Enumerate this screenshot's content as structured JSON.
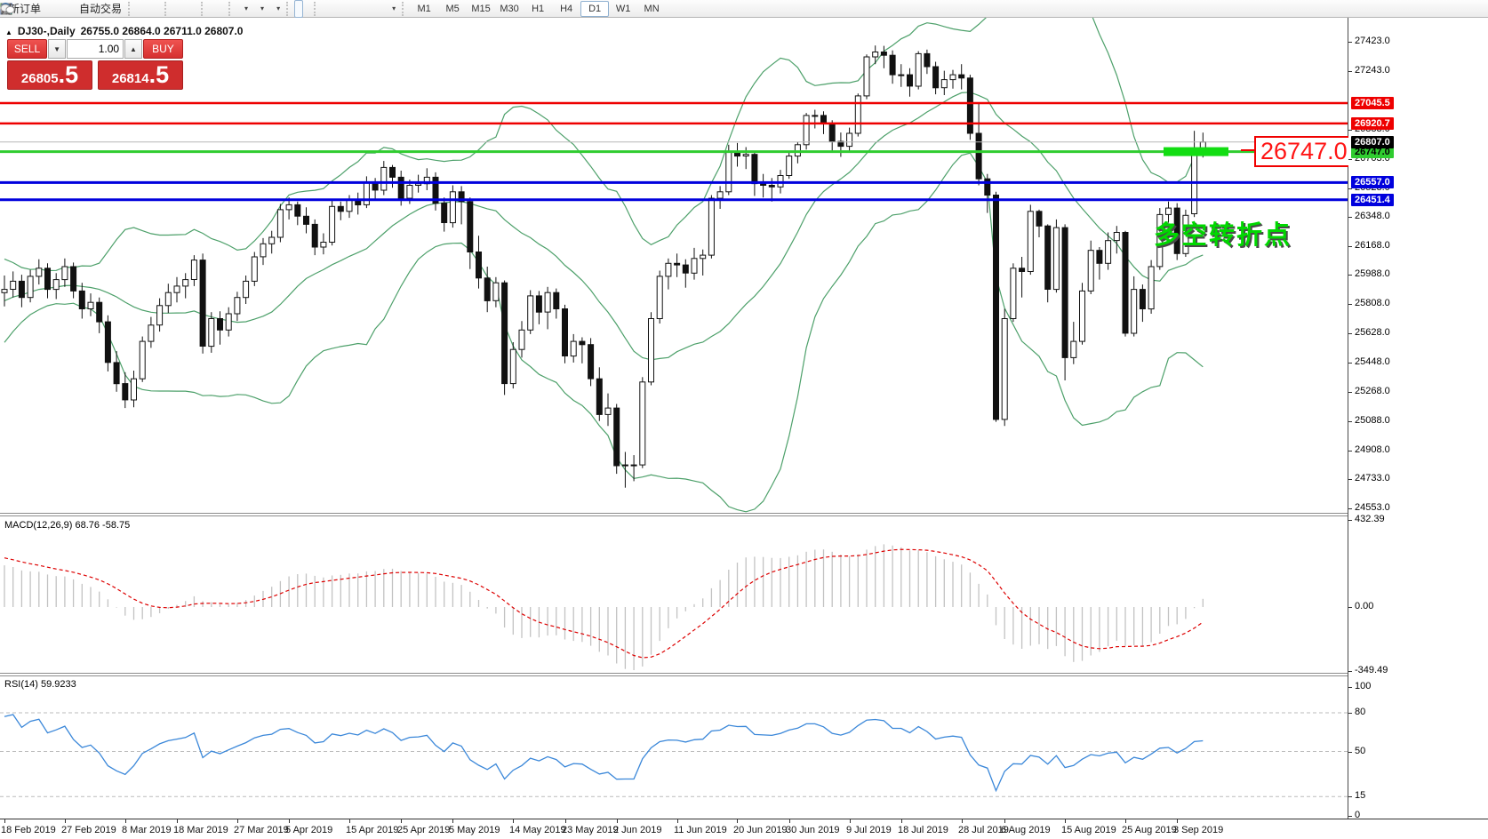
{
  "toolbar": {
    "buttons": [
      {
        "name": "new-order",
        "icon": "doc-plus",
        "label": "新订单"
      },
      {
        "name": "indicators",
        "icon": "diamond"
      },
      {
        "name": "market-watch",
        "icon": "person"
      },
      {
        "name": "signals",
        "icon": "radar"
      },
      {
        "name": "auto-trading",
        "icon": "autotrade",
        "label": "自动交易"
      },
      {
        "sep": true
      },
      {
        "name": "bar-chart",
        "icon": "bars"
      },
      {
        "name": "candle-chart",
        "icon": "candles"
      },
      {
        "name": "line-chart",
        "icon": "line"
      },
      {
        "sep": true
      },
      {
        "name": "zoom-in",
        "icon": "zoom-in"
      },
      {
        "name": "zoom-out",
        "icon": "zoom-out"
      },
      {
        "name": "tile-windows",
        "icon": "tile"
      },
      {
        "sep": true
      },
      {
        "name": "chart-shift",
        "icon": "shift"
      },
      {
        "name": "auto-scroll",
        "icon": "scroll"
      },
      {
        "sep": true
      },
      {
        "name": "new-chart",
        "icon": "doc-plus",
        "dropdown": true
      },
      {
        "name": "periods",
        "icon": "clock",
        "dropdown": true
      },
      {
        "name": "templates",
        "icon": "template",
        "dropdown": true
      },
      {
        "sep": true
      },
      {
        "name": "cursor",
        "icon": "cursor",
        "active": true
      },
      {
        "name": "crosshair",
        "icon": "crosshair"
      },
      {
        "sep": true
      },
      {
        "name": "vertical-line",
        "icon": "vline"
      },
      {
        "name": "horizontal-line",
        "icon": "hline"
      },
      {
        "name": "trendline",
        "icon": "trendline"
      },
      {
        "name": "equidistant-channel",
        "icon": "fibo-e"
      },
      {
        "name": "fibonacci",
        "icon": "fibo-f"
      },
      {
        "name": "text",
        "icon": "text-a"
      },
      {
        "name": "text-label",
        "icon": "label-t"
      },
      {
        "name": "arrows",
        "icon": "arrows",
        "dropdown": true
      },
      {
        "sep": true
      }
    ],
    "timeframes": [
      "M1",
      "M5",
      "M15",
      "M30",
      "H1",
      "H4",
      "D1",
      "W1",
      "MN"
    ],
    "active_timeframe": "D1",
    "right_icons": [
      "search",
      "chat"
    ]
  },
  "chart": {
    "symbol_timeframe": "DJ30-,Daily",
    "ohlc_text": "26755.0 26864.0 26711.0 26807.0"
  },
  "trade": {
    "sell_label": "SELL",
    "buy_label": "BUY",
    "volume": "1.00",
    "sell_int": "26805",
    "sell_frac": ".5",
    "buy_int": "26814",
    "buy_frac": ".5"
  },
  "indicators": {
    "macd_label": "MACD(12,26,9) 68.76 -58.75",
    "rsi_label": "RSI(14) 59.9233"
  },
  "annotations": {
    "price_tag": "26747.0",
    "turning_point": "多空转折点"
  },
  "chart_data": {
    "type": "candlestick",
    "symbol": "DJ30-",
    "timeframe": "Daily",
    "last_ohlc": {
      "open": 26755.0,
      "high": 26864.0,
      "low": 26711.0,
      "close": 26807.0
    },
    "ylim": [
      24553,
      27423
    ],
    "price_axis_ticks": [
      27423,
      27243,
      26883,
      26703,
      26523,
      26348,
      26168,
      25988,
      25808,
      25628,
      25448,
      25268,
      25088,
      24908,
      24733,
      24553
    ],
    "current_price": 26807.0,
    "hlines": [
      {
        "price": 27045.5,
        "label": "27045.5",
        "color": "#ee0000",
        "text": "#ffffff"
      },
      {
        "price": 26920.7,
        "label": "26920.7",
        "color": "#ee0000",
        "text": "#ffffff"
      },
      {
        "price": 26747.0,
        "label": "26747.0",
        "color": "#2fcc2f",
        "text": "#000000"
      },
      {
        "price": 26557.0,
        "label": "26557.0",
        "color": "#0000dd",
        "text": "#ffffff"
      },
      {
        "price": 26451.4,
        "label": "26451.4",
        "color": "#0000dd",
        "text": "#ffffff"
      }
    ],
    "highlight_rect": {
      "price": 26747.0,
      "x": 1309,
      "width": 73,
      "color": "#12dd12"
    },
    "x_labels": [
      "18 Feb 2019",
      "27 Feb 2019",
      "8 Mar 2019",
      "18 Mar 2019",
      "27 Mar 2019",
      "5 Apr 2019",
      "15 Apr 2019",
      "25 Apr 2019",
      "5 May 2019",
      "14 May 2019",
      "23 May 2019",
      "2 Jun 2019",
      "11 Jun 2019",
      "20 Jun 2019",
      "30 Jun 2019",
      "9 Jul 2019",
      "18 Jul 2019",
      "28 Jul 2019",
      "6 Aug 2019",
      "15 Aug 2019",
      "25 Aug 2019",
      "3 Sep 2019"
    ],
    "x_label_indices": [
      0,
      7,
      14,
      20,
      27,
      33,
      40,
      46,
      52,
      59,
      65,
      71,
      78,
      85,
      91,
      98,
      104,
      111,
      116,
      123,
      130,
      136
    ],
    "overlays": {
      "bollinger": {
        "period": 20,
        "deviation": 2,
        "color": "#4da06a"
      }
    },
    "subcharts": [
      {
        "type": "macd-histogram",
        "fast": 12,
        "slow": 26,
        "signal": 9,
        "axis_ticks": [
          "432.39",
          "0.00",
          "-349.49"
        ],
        "histogram_color": "#c2c2c2",
        "signal_color": "#dd0000"
      },
      {
        "type": "rsi-line",
        "period": 14,
        "axis_ticks": [
          "100",
          "80",
          "50",
          "15",
          "0"
        ],
        "levels": [
          80,
          50,
          15
        ],
        "line_color": "#3a87d9"
      }
    ],
    "indicator_warmup_closes": [
      24600,
      24690,
      24780,
      24870,
      24950,
      25040,
      25120,
      25200,
      25280,
      25350,
      25430,
      25500,
      25570,
      25640,
      25700,
      25760,
      25820,
      25870,
      25850,
      25910,
      25960,
      25920,
      25870,
      25820,
      25880,
      25930,
      25980,
      25940,
      25900,
      25880
    ],
    "candles_ohlc": [
      [
        25880,
        25985,
        25795,
        25900
      ],
      [
        25900,
        26010,
        25850,
        25950
      ],
      [
        25950,
        25990,
        25790,
        25850
      ],
      [
        25850,
        26020,
        25820,
        25980
      ],
      [
        25980,
        26085,
        25930,
        26030
      ],
      [
        26030,
        26060,
        25845,
        25900
      ],
      [
        25900,
        26000,
        25840,
        25960
      ],
      [
        25960,
        26090,
        25915,
        26040
      ],
      [
        26040,
        26065,
        25845,
        25890
      ],
      [
        25890,
        25940,
        25720,
        25780
      ],
      [
        25780,
        25875,
        25735,
        25820
      ],
      [
        25820,
        25850,
        25630,
        25700
      ],
      [
        25700,
        25740,
        25395,
        25450
      ],
      [
        25450,
        25520,
        25270,
        25320
      ],
      [
        25320,
        25390,
        25170,
        25220
      ],
      [
        25220,
        25400,
        25175,
        25350
      ],
      [
        25350,
        25610,
        25330,
        25580
      ],
      [
        25580,
        25730,
        25540,
        25680
      ],
      [
        25680,
        25845,
        25640,
        25800
      ],
      [
        25800,
        25935,
        25755,
        25880
      ],
      [
        25880,
        25975,
        25820,
        25920
      ],
      [
        25920,
        26000,
        25845,
        25960
      ],
      [
        25960,
        26110,
        25920,
        26080
      ],
      [
        26080,
        26120,
        25505,
        25550
      ],
      [
        25550,
        25760,
        25510,
        25720
      ],
      [
        25720,
        25765,
        25560,
        25650
      ],
      [
        25650,
        25790,
        25610,
        25750
      ],
      [
        25750,
        25885,
        25705,
        25850
      ],
      [
        25850,
        25985,
        25810,
        25950
      ],
      [
        25950,
        26130,
        25920,
        26100
      ],
      [
        26100,
        26215,
        26050,
        26180
      ],
      [
        26180,
        26260,
        26120,
        26220
      ],
      [
        26220,
        26425,
        26190,
        26390
      ],
      [
        26390,
        26465,
        26330,
        26420
      ],
      [
        26420,
        26440,
        26295,
        26350
      ],
      [
        26350,
        26405,
        26245,
        26300
      ],
      [
        26300,
        26330,
        26110,
        26160
      ],
      [
        26160,
        26245,
        26115,
        26190
      ],
      [
        26190,
        26445,
        26170,
        26410
      ],
      [
        26410,
        26440,
        26325,
        26380
      ],
      [
        26380,
        26480,
        26340,
        26450
      ],
      [
        26450,
        26495,
        26360,
        26420
      ],
      [
        26420,
        26595,
        26400,
        26560
      ],
      [
        26560,
        26585,
        26445,
        26510
      ],
      [
        26510,
        26690,
        26480,
        26650
      ],
      [
        26650,
        26665,
        26525,
        26590
      ],
      [
        26590,
        26630,
        26415,
        26460
      ],
      [
        26460,
        26575,
        26425,
        26540
      ],
      [
        26540,
        26605,
        26495,
        26550
      ],
      [
        26550,
        26645,
        26510,
        26590
      ],
      [
        26590,
        26620,
        26385,
        26430
      ],
      [
        26430,
        26465,
        26255,
        26310
      ],
      [
        26310,
        26540,
        26280,
        26500
      ],
      [
        26500,
        26535,
        26300,
        26440
      ],
      [
        26440,
        26465,
        26025,
        26130
      ],
      [
        26130,
        26230,
        25905,
        25970
      ],
      [
        25970,
        26040,
        25760,
        25830
      ],
      [
        25830,
        25975,
        25790,
        25940
      ],
      [
        25940,
        25955,
        25250,
        25320
      ],
      [
        25320,
        25575,
        25290,
        25530
      ],
      [
        25530,
        25705,
        25480,
        25650
      ],
      [
        25650,
        25895,
        25625,
        25860
      ],
      [
        25860,
        25890,
        25685,
        25760
      ],
      [
        25760,
        25915,
        25655,
        25880
      ],
      [
        25880,
        25905,
        25720,
        25780
      ],
      [
        25780,
        25805,
        25445,
        25490
      ],
      [
        25490,
        25625,
        25450,
        25580
      ],
      [
        25580,
        25605,
        25445,
        25560
      ],
      [
        25560,
        25600,
        25305,
        25350
      ],
      [
        25350,
        25420,
        25090,
        25130
      ],
      [
        25130,
        25260,
        25060,
        25170
      ],
      [
        25170,
        25195,
        24765,
        24815
      ],
      [
        24815,
        24900,
        24680,
        24820
      ],
      [
        24820,
        24880,
        24720,
        24820
      ],
      [
        24820,
        25360,
        24800,
        25330
      ],
      [
        25330,
        25760,
        25310,
        25720
      ],
      [
        25720,
        26015,
        25690,
        25980
      ],
      [
        25980,
        26090,
        25900,
        26060
      ],
      [
        26060,
        26120,
        25975,
        26050
      ],
      [
        26050,
        26085,
        25910,
        26000
      ],
      [
        26000,
        26155,
        25960,
        26090
      ],
      [
        26090,
        26145,
        25985,
        26110
      ],
      [
        26110,
        26480,
        26090,
        26460
      ],
      [
        26460,
        26535,
        26395,
        26500
      ],
      [
        26500,
        26790,
        26480,
        26750
      ],
      [
        26750,
        26800,
        26655,
        26720
      ],
      [
        26720,
        26775,
        26640,
        26730
      ],
      [
        26730,
        26745,
        26475,
        26550
      ],
      [
        26550,
        26610,
        26465,
        26540
      ],
      [
        26540,
        26585,
        26440,
        26530
      ],
      [
        26530,
        26635,
        26490,
        26600
      ],
      [
        26600,
        26745,
        26580,
        26720
      ],
      [
        26720,
        26805,
        26675,
        26790
      ],
      [
        26790,
        26985,
        26760,
        26970
      ],
      [
        26970,
        27005,
        26890,
        26970
      ],
      [
        26970,
        26995,
        26855,
        26920
      ],
      [
        26920,
        26940,
        26745,
        26810
      ],
      [
        26810,
        26865,
        26715,
        26780
      ],
      [
        26780,
        26895,
        26750,
        26860
      ],
      [
        26860,
        27105,
        26840,
        27090
      ],
      [
        27090,
        27345,
        27070,
        27330
      ],
      [
        27330,
        27400,
        27285,
        27360
      ],
      [
        27360,
        27398,
        27260,
        27340
      ],
      [
        27340,
        27370,
        27165,
        27220
      ],
      [
        27220,
        27285,
        27145,
        27220
      ],
      [
        27220,
        27260,
        27085,
        27150
      ],
      [
        27150,
        27365,
        27130,
        27350
      ],
      [
        27350,
        27375,
        27225,
        27270
      ],
      [
        27270,
        27300,
        27100,
        27140
      ],
      [
        27140,
        27245,
        27095,
        27190
      ],
      [
        27190,
        27250,
        27135,
        27220
      ],
      [
        27220,
        27285,
        27130,
        27200
      ],
      [
        27200,
        27220,
        26820,
        26860
      ],
      [
        26860,
        27050,
        26540,
        26580
      ],
      [
        26580,
        26610,
        26370,
        26480
      ],
      [
        26480,
        26500,
        25085,
        25100
      ],
      [
        25100,
        25780,
        25060,
        25720
      ],
      [
        25720,
        26060,
        25700,
        26030
      ],
      [
        26030,
        26100,
        25850,
        26010
      ],
      [
        26010,
        26420,
        25990,
        26380
      ],
      [
        26380,
        26390,
        26220,
        26290
      ],
      [
        26290,
        26300,
        25820,
        25900
      ],
      [
        25900,
        26330,
        25880,
        26280
      ],
      [
        26280,
        26300,
        25340,
        25480
      ],
      [
        25480,
        25700,
        25440,
        25580
      ],
      [
        25580,
        25940,
        25560,
        25890
      ],
      [
        25890,
        26200,
        25870,
        26140
      ],
      [
        26140,
        26160,
        25960,
        26060
      ],
      [
        26060,
        26250,
        26020,
        26200
      ],
      [
        26200,
        26290,
        26120,
        26250
      ],
      [
        26250,
        26260,
        25610,
        25630
      ],
      [
        25630,
        25980,
        25610,
        25900
      ],
      [
        25900,
        25930,
        25700,
        25780
      ],
      [
        25780,
        26080,
        25750,
        26040
      ],
      [
        26040,
        26400,
        26020,
        26360
      ],
      [
        26360,
        26440,
        26310,
        26400
      ],
      [
        26400,
        26430,
        26080,
        26120
      ],
      [
        26120,
        26390,
        26100,
        26355
      ],
      [
        26365,
        26875,
        26345,
        26760
      ],
      [
        26755,
        26864,
        26711,
        26807
      ]
    ]
  }
}
